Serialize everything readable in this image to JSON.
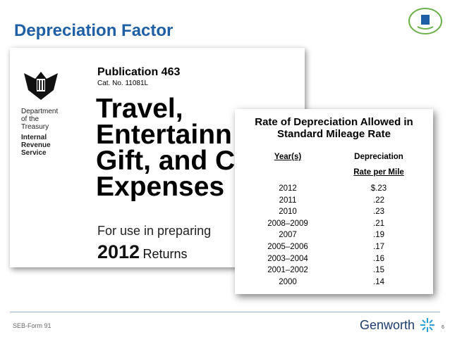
{
  "slide": {
    "title": "Depreciation Factor",
    "footer": "SEB-Form 91",
    "brand": "Genworth",
    "page_number": "6"
  },
  "publication": {
    "agency": [
      "Department",
      "of the",
      "Treasury"
    ],
    "service": [
      "Internal",
      "Revenue",
      "Service"
    ],
    "name": "Publication 463",
    "cat_no": "Cat. No. 11081L",
    "title_lines": [
      "Travel,",
      "Entertainn",
      "Gift, and C",
      "Expenses"
    ],
    "subtitle": "For use in preparing",
    "year": "2012",
    "year_suffix": "Returns"
  },
  "table": {
    "title_lines": [
      "Rate of Depreciation Allowed in",
      "Standard Mileage Rate"
    ],
    "headers": [
      "Year(s)",
      "Depreciation"
    ],
    "subheader": "Rate per Mile",
    "rows": [
      [
        "2012",
        "$.23"
      ],
      [
        "2011",
        ".22"
      ],
      [
        "2010",
        ".23"
      ],
      [
        "2008–2009",
        ".21"
      ],
      [
        "2007",
        ".19"
      ],
      [
        "2005–2006",
        ".17"
      ],
      [
        "2003–2004",
        ".16"
      ],
      [
        "2001–2002",
        ".15"
      ],
      [
        "2000",
        ".14"
      ]
    ]
  }
}
